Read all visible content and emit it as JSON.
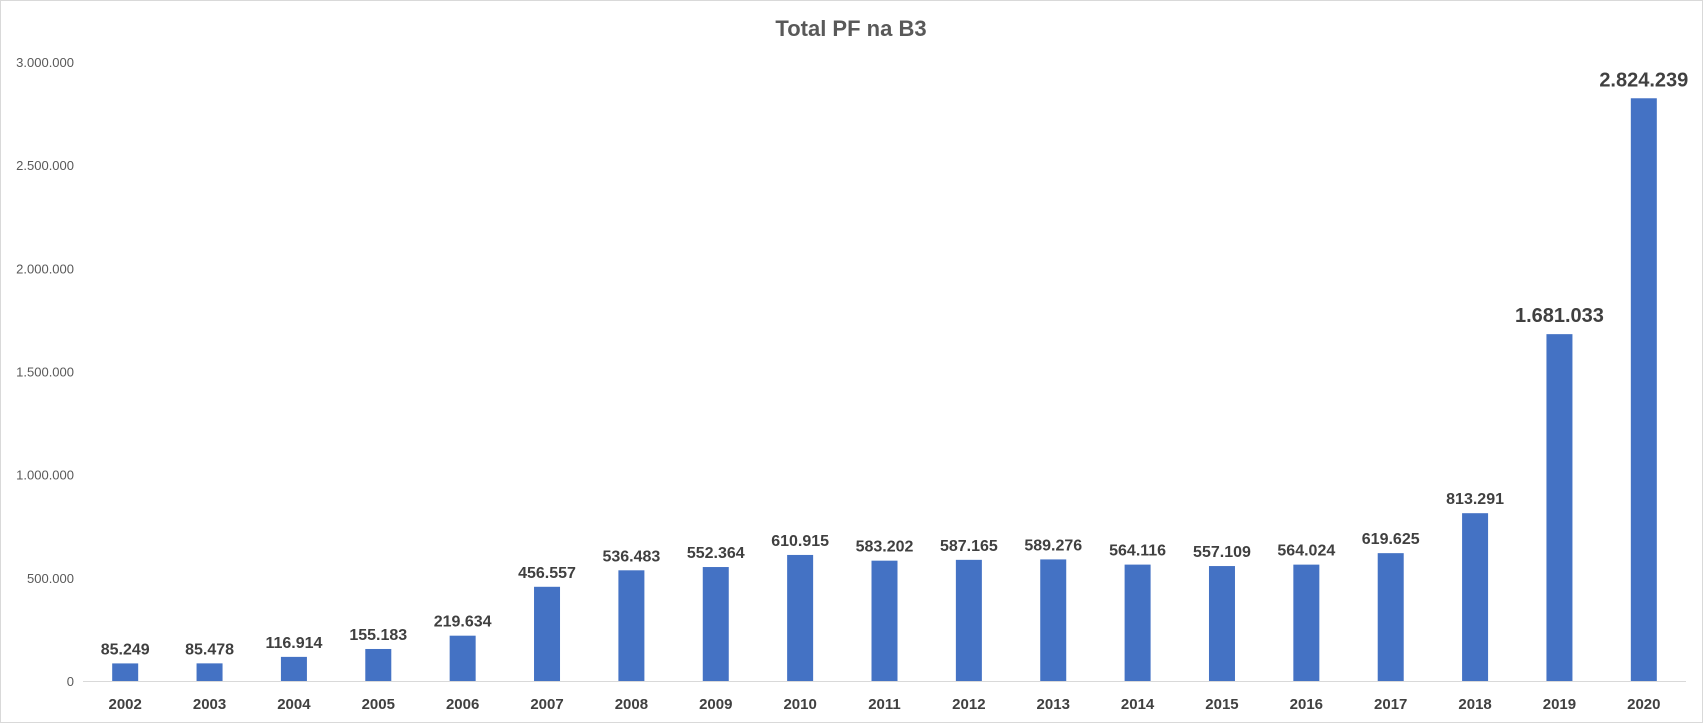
{
  "colors": {
    "bar": "#4472C4",
    "axis": "#d9d9d9",
    "text": "#404040"
  },
  "chart_data": {
    "type": "bar",
    "title": "Total PF na B3",
    "xlabel": "",
    "ylabel": "",
    "ylim": [
      0,
      3000000
    ],
    "grid": false,
    "legend": "none",
    "yticks": [
      {
        "value": 0,
        "label": "0"
      },
      {
        "value": 500000,
        "label": "500.000"
      },
      {
        "value": 1000000,
        "label": "1.000.000"
      },
      {
        "value": 1500000,
        "label": "1.500.000"
      },
      {
        "value": 2000000,
        "label": "2.000.000"
      },
      {
        "value": 2500000,
        "label": "2.500.000"
      },
      {
        "value": 3000000,
        "label": "3.000.000"
      }
    ],
    "categories": [
      "2002",
      "2003",
      "2004",
      "2005",
      "2006",
      "2007",
      "2008",
      "2009",
      "2010",
      "2011",
      "2012",
      "2013",
      "2014",
      "2015",
      "2016",
      "2017",
      "2018",
      "2019",
      "2020"
    ],
    "values": [
      85249,
      85478,
      116914,
      155183,
      219634,
      456557,
      536483,
      552364,
      610915,
      583202,
      587165,
      589276,
      564116,
      557109,
      564024,
      619625,
      813291,
      1681033,
      2824239
    ],
    "data_labels": [
      "85.249",
      "85.478",
      "116.914",
      "155.183",
      "219.634",
      "456.557",
      "536.483",
      "552.364",
      "610.915",
      "583.202",
      "587.165",
      "589.276",
      "564.116",
      "557.109",
      "564.024",
      "619.625",
      "813.291",
      "1.681.033",
      "2.824.239"
    ]
  }
}
